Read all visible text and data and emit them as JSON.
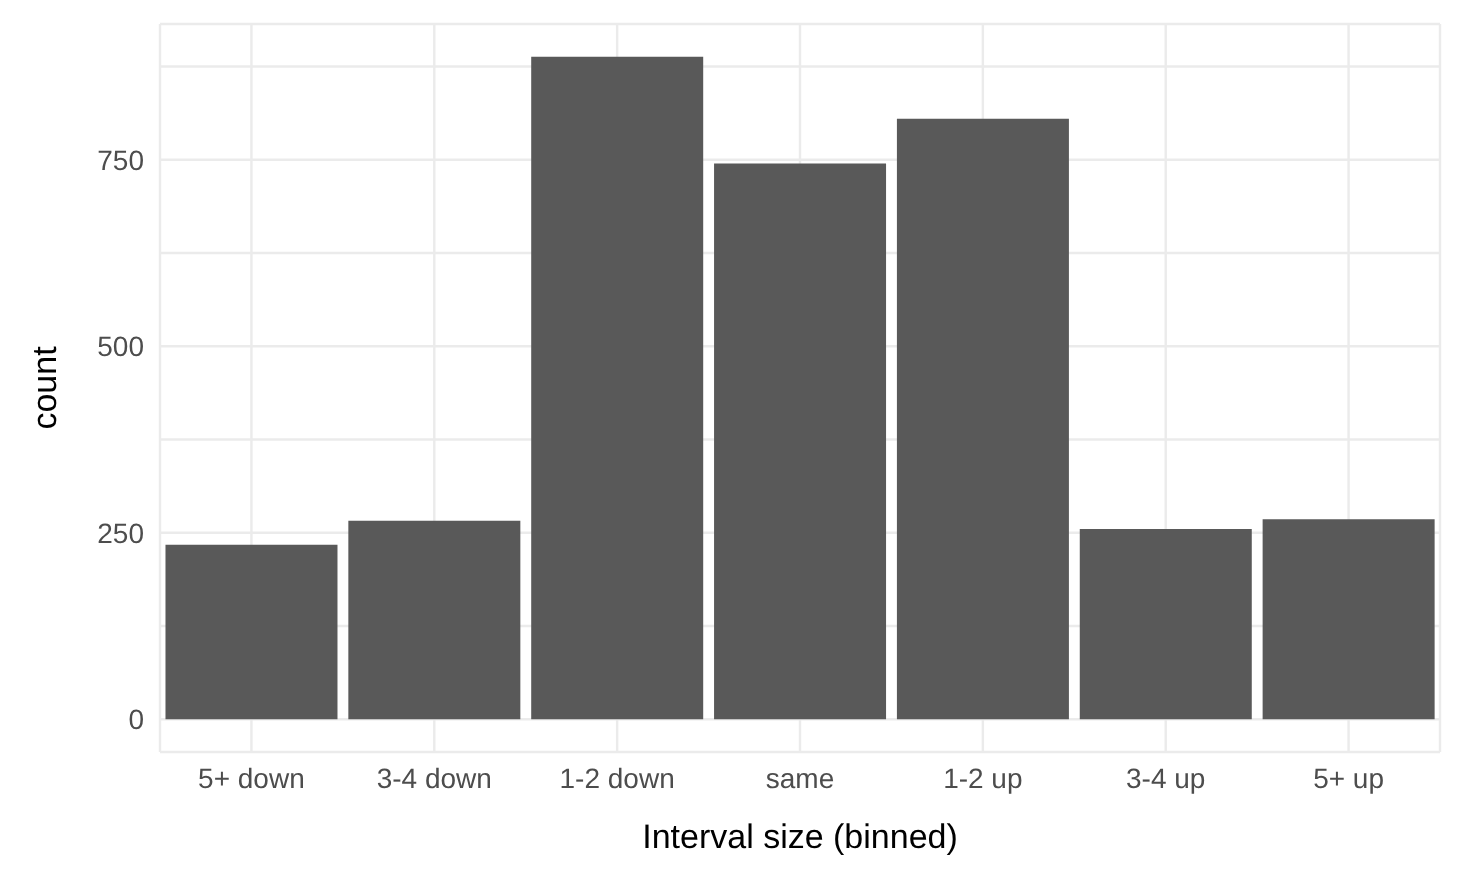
{
  "chart_data": {
    "type": "bar",
    "xlabel": "Interval size (binned)",
    "ylabel": "count",
    "categories": [
      "5+ down",
      "3-4 down",
      "1-2 down",
      "same",
      "1-2 up",
      "3-4 up",
      "5+ up"
    ],
    "values": [
      234,
      266,
      888,
      745,
      805,
      255,
      268
    ],
    "color": "#595959",
    "ylim": [
      -44,
      932
    ],
    "yticks": [
      0,
      {
        "value": 125,
        "label": null
      },
      250,
      {
        "value": 375,
        "label": null
      },
      500,
      {
        "value": 625,
        "label": null
      },
      750,
      {
        "value": 875,
        "label": null
      }
    ],
    "grid": true
  }
}
